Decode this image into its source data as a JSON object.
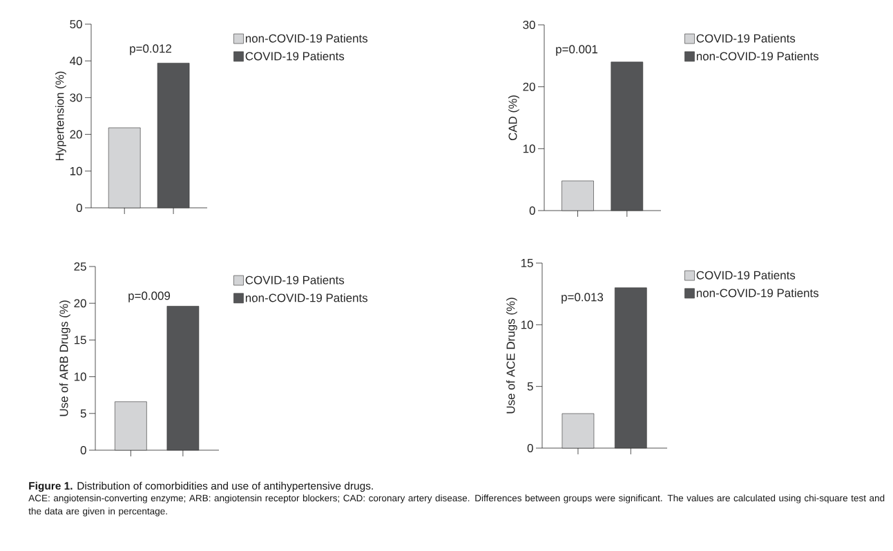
{
  "chart_data": [
    {
      "type": "bar",
      "ylabel": "Hypertension (%)",
      "categories": [
        null,
        null
      ],
      "ylim": [
        0,
        50
      ],
      "yticks": [
        0,
        10,
        20,
        30,
        40,
        50
      ],
      "tick_labels": "y",
      "legend": "right",
      "series": [
        {
          "name": "non-COVID-19 Patients",
          "color": "#d3d4d6",
          "values": [
            21.8,
            null
          ]
        },
        {
          "name": "COVID-19 Patients",
          "color": "#545557",
          "values": [
            null,
            39.4
          ]
        }
      ],
      "annotations": [
        "p=0.012"
      ]
    },
    {
      "type": "bar",
      "ylabel": "CAD (%)",
      "categories": [
        null,
        null
      ],
      "ylim": [
        0,
        30
      ],
      "yticks": [
        0,
        10,
        20,
        30
      ],
      "tick_labels": "y",
      "legend": "right",
      "series": [
        {
          "name": "COVID-19 Patients",
          "color": "#d3d4d6",
          "values": [
            4.8,
            null
          ]
        },
        {
          "name": "non-COVID-19 Patients",
          "color": "#545557",
          "values": [
            null,
            24.0
          ]
        }
      ],
      "annotations": [
        "p=0.001"
      ]
    },
    {
      "type": "bar",
      "ylabel": "Use of ARB Drugs (%)",
      "categories": [
        null,
        null
      ],
      "ylim": [
        0,
        25
      ],
      "yticks": [
        0,
        5,
        10,
        15,
        20,
        25
      ],
      "tick_labels": "y",
      "legend": "right",
      "series": [
        {
          "name": "COVID-19 Patients",
          "color": "#d3d4d6",
          "values": [
            6.6,
            null
          ]
        },
        {
          "name": "non-COVID-19 Patients",
          "color": "#545557",
          "values": [
            null,
            19.6
          ]
        }
      ],
      "annotations": [
        "p=0.009"
      ]
    },
    {
      "type": "bar",
      "ylabel": "Use of ACE Drugs (%)",
      "categories": [
        null,
        null
      ],
      "ylim": [
        0,
        15
      ],
      "yticks": [
        0,
        5,
        10,
        15
      ],
      "tick_labels": "y",
      "legend": "right",
      "series": [
        {
          "name": "COVID-19 Patients",
          "color": "#d3d4d6",
          "values": [
            2.8,
            null
          ]
        },
        {
          "name": "non-COVID-19 Patients",
          "color": "#545557",
          "values": [
            null,
            13.0
          ]
        }
      ],
      "annotations": [
        "p=0.013",
        "**Figure 1.** Distribution of comorbidities and use of antihypertensive drugs.",
        "ACE: angiotensin-converting enzyme; ARB: angiotensin receptor blockers; CAD: coronary artery disease. Differences between groups were significant. The values are calculated using chi-square test and the data are given in percentage."
      ]
    }
  ]
}
